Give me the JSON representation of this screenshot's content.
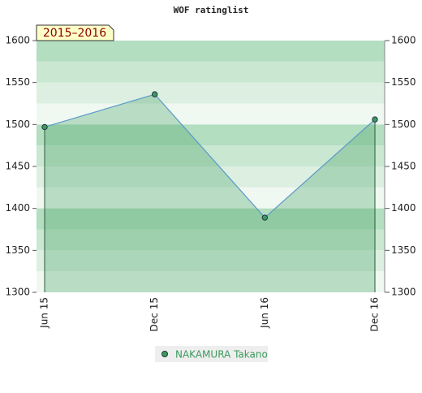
{
  "chart_data": {
    "type": "line",
    "title": "WOF ratinglist",
    "badge": "2015–2016",
    "categories": [
      "Jun 15",
      "Dec 15",
      "Jun 16",
      "Dec 16"
    ],
    "series": [
      {
        "name": "NAKAMURA Takano",
        "color": "#3c9a5c",
        "line_color": "#5a9ac8",
        "values": [
          1497,
          1536,
          1389,
          1506
        ]
      }
    ],
    "ylim": [
      1300,
      1600
    ],
    "yticks": [
      1300,
      1350,
      1400,
      1450,
      1500,
      1550,
      1600
    ],
    "y2lim": [
      1300,
      1600
    ],
    "y2ticks": [
      1300,
      1350,
      1400,
      1450,
      1500,
      1550,
      1600
    ]
  }
}
